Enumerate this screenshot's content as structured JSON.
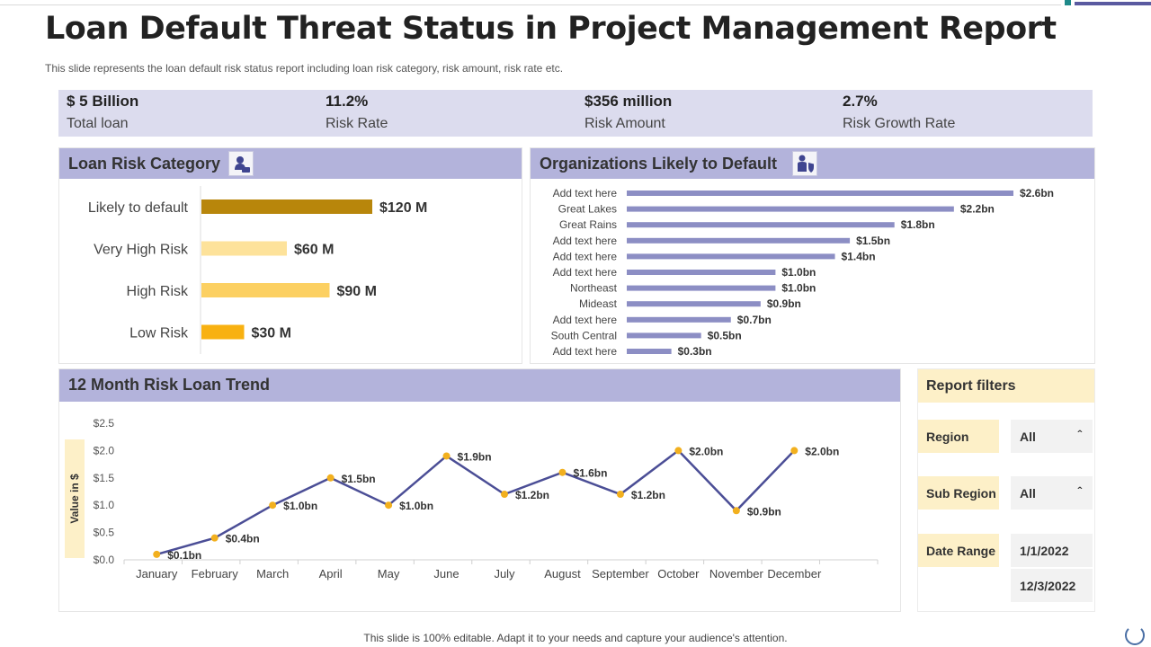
{
  "header": {
    "title": "Loan Default Threat Status in Project Management Report",
    "subtitle": "This slide represents the loan default risk status report including loan risk category, risk amount, risk rate etc."
  },
  "kpis": [
    {
      "value": "$ 5 Billion",
      "label": "Total loan"
    },
    {
      "value": "11.2%",
      "label": "Risk Rate"
    },
    {
      "value": "$356 million",
      "label": "Risk Amount"
    },
    {
      "value": "2.7%",
      "label": "Risk Growth Rate"
    }
  ],
  "panels": {
    "risk_category_title": "Loan Risk Category",
    "organizations_title": "Organizations  Likely to Default",
    "trend_title": "12 Month  Risk Loan Trend"
  },
  "icons": {
    "risk_category": "money-bag-icon",
    "organizations": "person-shield-icon"
  },
  "filters": {
    "title": "Report filters",
    "region_label": "Region",
    "region_value": "All",
    "subregion_label": "Sub Region",
    "subregion_value": "All",
    "daterange_label": "Date Range",
    "date_from": "1/1/2022",
    "date_to": "12/3/2022"
  },
  "colors": {
    "kpi_band": "#dcdcee",
    "panel_header": "#b3b3db",
    "line": "#4b4e96",
    "marker": "#f2b01e",
    "org_bar": "#8c8ec4",
    "filter_label": "#fdf0c8"
  },
  "footer": {
    "text": "This slide is 100% editable. Adapt it to your needs and capture your audience's attention."
  },
  "chart_data": [
    {
      "type": "bar",
      "orientation": "horizontal",
      "title": "Loan Risk Category",
      "categories": [
        "Likely to default",
        "Very High Risk",
        "High Risk",
        "Low Risk"
      ],
      "values": [
        120,
        60,
        90,
        30
      ],
      "value_labels": [
        "$120 M",
        "$60 M",
        "$90 M",
        "$30 M"
      ],
      "colors": [
        "#b8860b",
        "#fde29a",
        "#fcd062",
        "#f8b111"
      ],
      "unit": "$ M"
    },
    {
      "type": "bar",
      "orientation": "horizontal",
      "title": "Organizations  Likely to Default",
      "categories": [
        "Add text here",
        "Great Lakes",
        "Great Rains",
        "Add text here",
        "Add text here",
        "Add text here",
        "Northeast",
        "Mideast",
        "Add text here",
        "South Central",
        "Add text here"
      ],
      "values": [
        2.6,
        2.2,
        1.8,
        1.5,
        1.4,
        1.0,
        1.0,
        0.9,
        0.7,
        0.5,
        0.3
      ],
      "value_labels": [
        "$2.6bn",
        "$2.2bn",
        "$1.8bn",
        "$1.5bn",
        "$1.4bn",
        "$1.0bn",
        "$1.0bn",
        "$0.9bn",
        "$0.7bn",
        "$0.5bn",
        "$0.3bn"
      ],
      "unit": "$ bn"
    },
    {
      "type": "line",
      "title": "12 Month  Risk Loan Trend",
      "ylabel": "Value in $",
      "ylim": [
        0,
        2.5
      ],
      "yticks": [
        0.0,
        0.5,
        1.0,
        1.5,
        2.0,
        2.5
      ],
      "ytick_labels": [
        "$0.0",
        "$0.5",
        "$1.0",
        "$1.5",
        "$2.0",
        "$2.5"
      ],
      "categories": [
        "January",
        "February",
        "March",
        "April",
        "May",
        "June",
        "July",
        "August",
        "September",
        "October",
        "November",
        "December"
      ],
      "values": [
        0.1,
        0.4,
        1.0,
        1.5,
        1.0,
        1.9,
        1.2,
        1.6,
        1.2,
        2.0,
        0.9,
        2.0
      ],
      "value_labels": [
        "$0.1bn",
        "$0.4bn",
        "$1.0bn",
        "$1.5bn",
        "$1.0bn",
        "$1.9bn",
        "$1.2bn",
        "$1.6bn",
        "$1.2bn",
        "$2.0bn",
        "$0.9bn",
        "$2.0bn"
      ]
    }
  ]
}
